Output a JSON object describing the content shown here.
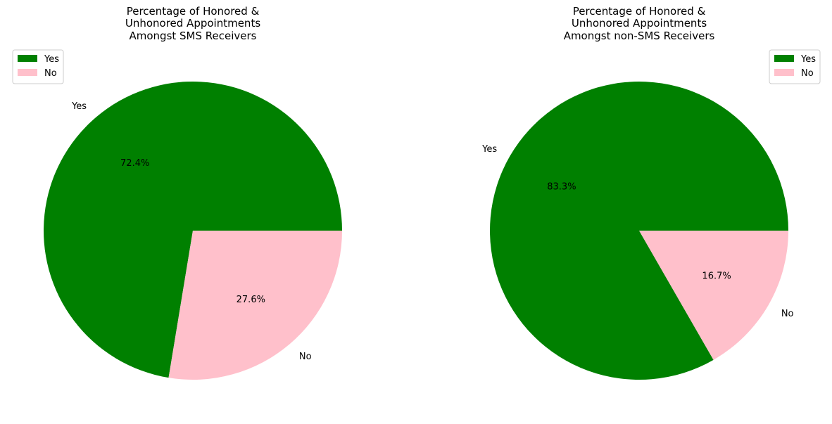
{
  "chart_data": [
    {
      "type": "pie",
      "title": [
        "Percentage of Honored &",
        "Unhonored Appointments",
        "Amongst SMS Receivers"
      ],
      "labels": [
        "Yes",
        "No"
      ],
      "values": [
        72.4,
        27.6
      ],
      "autopct": [
        "72.4%",
        "27.6%"
      ],
      "colors": [
        "#008000",
        "#ffc0cb"
      ],
      "legend": {
        "entries": [
          "Yes",
          "No"
        ],
        "position": "upper-left"
      }
    },
    {
      "type": "pie",
      "title": [
        "Percentage of Honored &",
        "Unhonored Appointments",
        "Amongst non-SMS Receivers"
      ],
      "labels": [
        "Yes",
        "No"
      ],
      "values": [
        83.3,
        16.7
      ],
      "autopct": [
        "83.3%",
        "16.7%"
      ],
      "colors": [
        "#008000",
        "#ffc0cb"
      ],
      "legend": {
        "entries": [
          "Yes",
          "No"
        ],
        "position": "upper-right"
      }
    }
  ]
}
